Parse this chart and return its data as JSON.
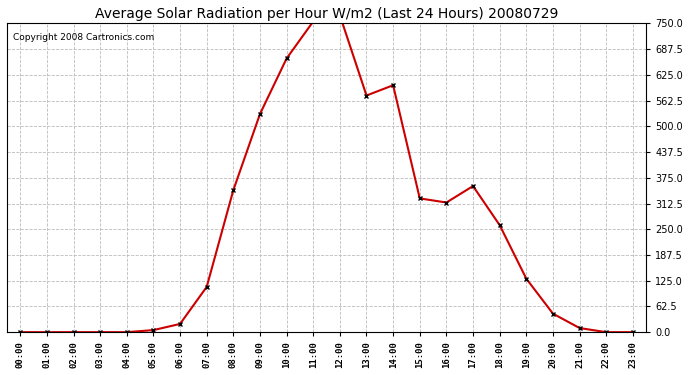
{
  "title": "Average Solar Radiation per Hour W/m2 (Last 24 Hours) 20080729",
  "copyright": "Copyright 2008 Cartronics.com",
  "hours": [
    "00:00",
    "01:00",
    "02:00",
    "03:00",
    "04:00",
    "05:00",
    "06:00",
    "07:00",
    "08:00",
    "09:00",
    "10:00",
    "11:00",
    "12:00",
    "13:00",
    "14:00",
    "15:00",
    "16:00",
    "17:00",
    "18:00",
    "19:00",
    "20:00",
    "21:00",
    "22:00",
    "23:00"
  ],
  "values": [
    0,
    0,
    0,
    0,
    0,
    5,
    20,
    110,
    345,
    530,
    665,
    755,
    770,
    575,
    600,
    325,
    315,
    355,
    260,
    130,
    45,
    10,
    0,
    0
  ],
  "line_color": "#cc0000",
  "marker": "x",
  "marker_color": "#000000",
  "bg_color": "#ffffff",
  "grid_color": "#bbbbbb",
  "ylim": [
    0,
    750
  ],
  "yticks": [
    0.0,
    62.5,
    125.0,
    187.5,
    250.0,
    312.5,
    375.0,
    437.5,
    500.0,
    562.5,
    625.0,
    687.5,
    750.0
  ],
  "title_fontsize": 10,
  "copyright_fontsize": 6.5
}
